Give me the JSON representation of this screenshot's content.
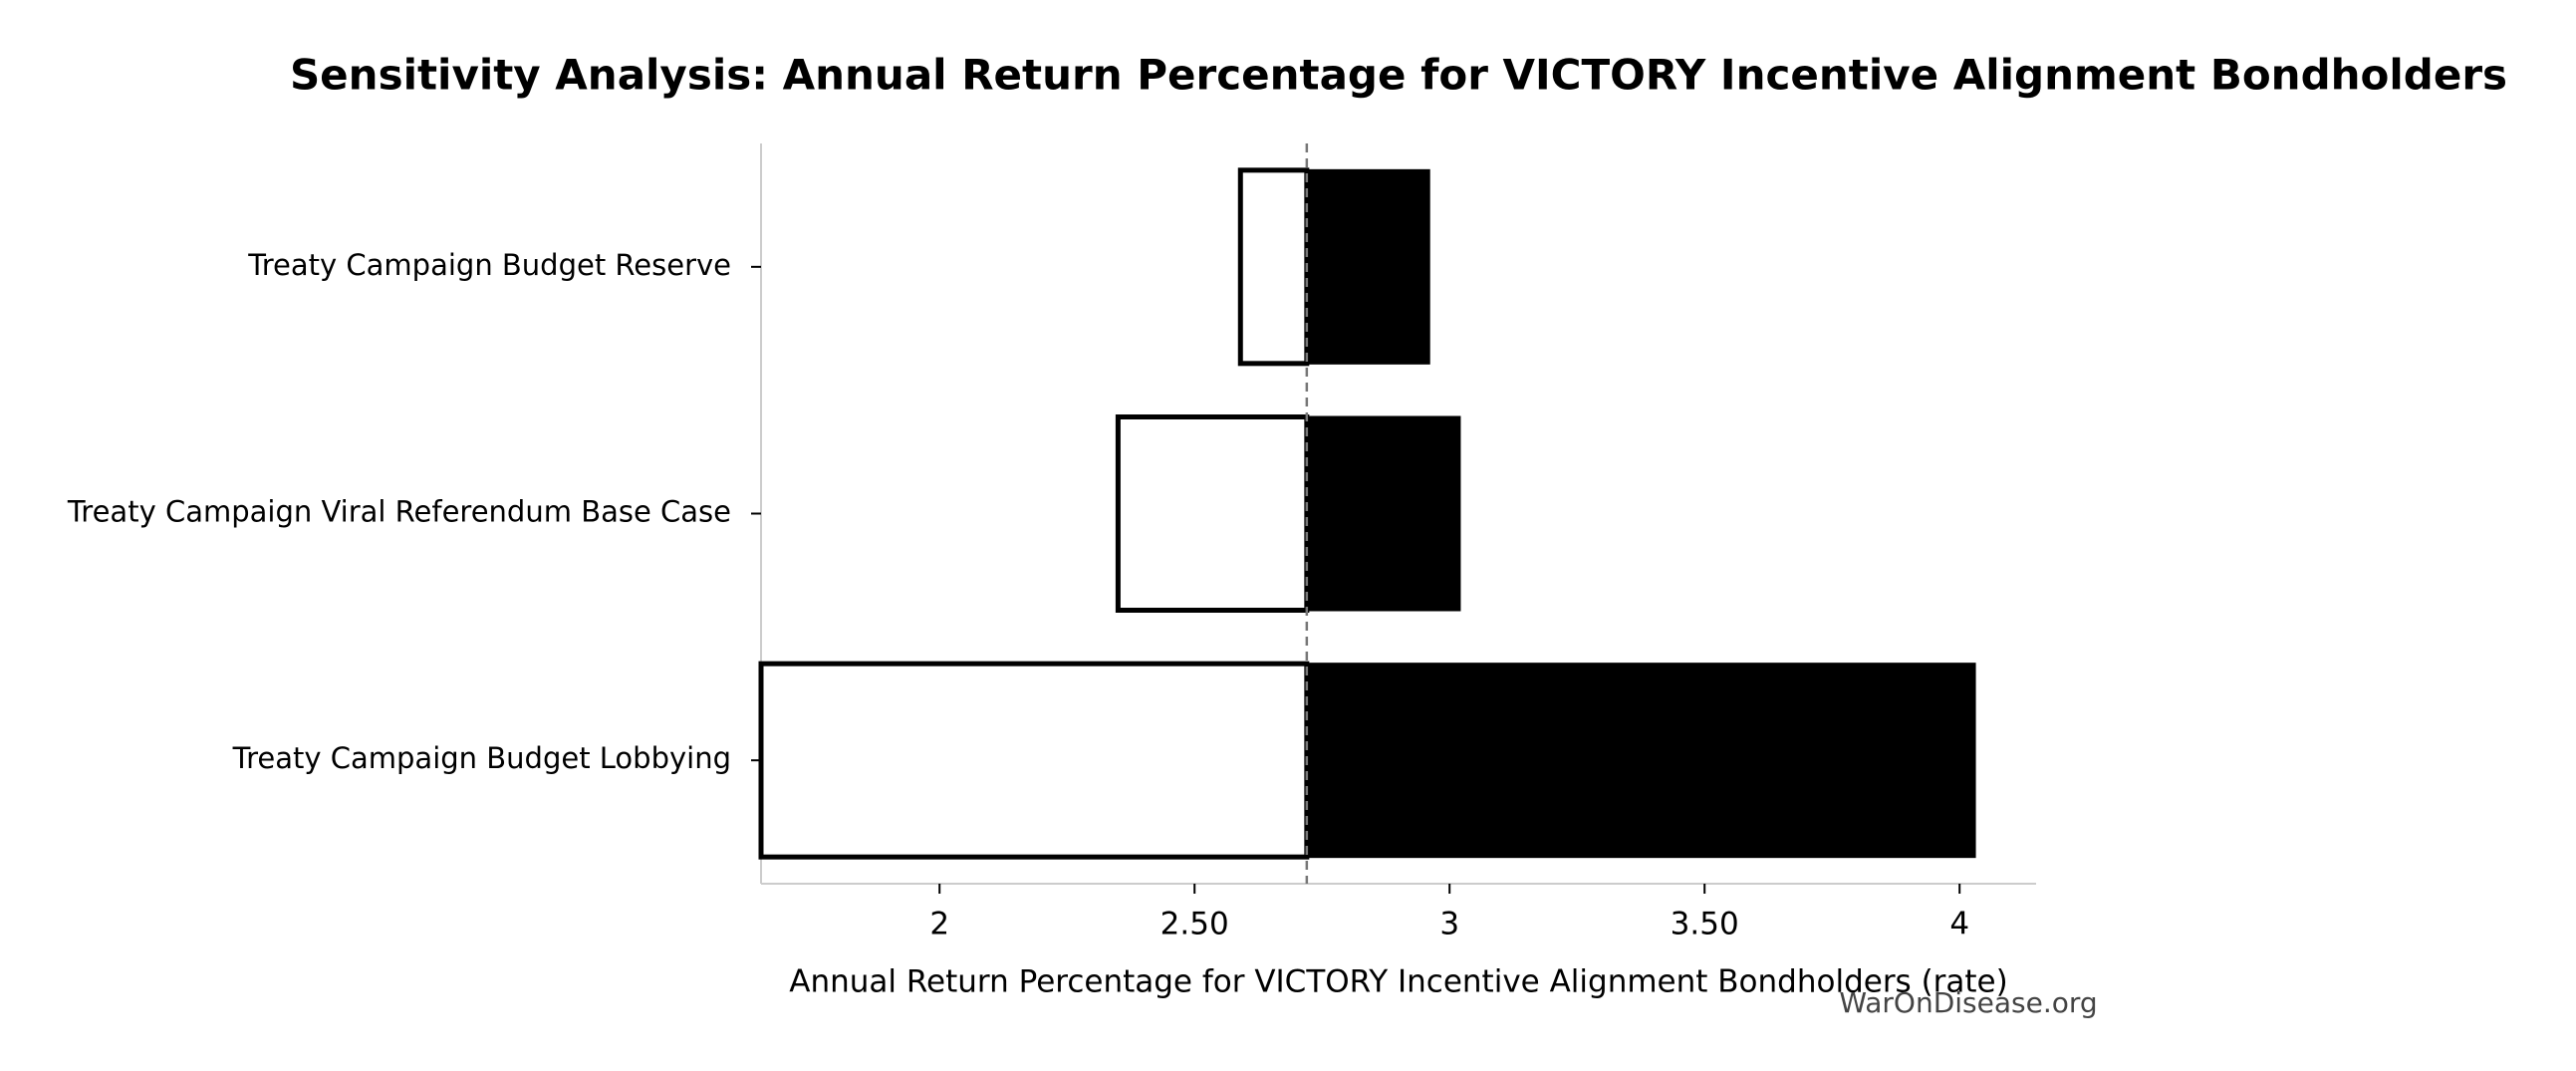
{
  "chart_data": {
    "type": "tornado",
    "title": "Sensitivity Analysis: Annual Return Percentage for VICTORY Incentive Alignment Bondholders",
    "x_label": "Annual Return Percentage for VICTORY Incentive Alignment Bondholders (rate)",
    "watermark": "WarOnDisease.org",
    "categories": [
      "Treaty Campaign Budget Reserve",
      "Treaty Campaign Viral Referendum Base Case",
      "Treaty Campaign Budget Lobbying"
    ],
    "baseline": 2.72,
    "low_values": [
      2.59,
      2.35,
      1.65
    ],
    "high_values": [
      2.96,
      3.02,
      4.03
    ],
    "low_color": "#ffffff",
    "high_color": "#000000",
    "xlim": [
      1.65,
      4.15
    ],
    "xticks": [
      2,
      {
        "value": 2.5,
        "label": "2.50"
      },
      3,
      {
        "value": 3.5,
        "label": "3.50"
      },
      4
    ]
  }
}
